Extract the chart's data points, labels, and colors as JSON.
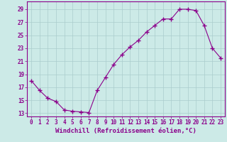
{
  "x": [
    0,
    1,
    2,
    3,
    4,
    5,
    6,
    7,
    8,
    9,
    10,
    11,
    12,
    13,
    14,
    15,
    16,
    17,
    18,
    19,
    20,
    21,
    22,
    23
  ],
  "y": [
    18.0,
    16.5,
    15.3,
    14.8,
    13.5,
    13.3,
    13.2,
    13.1,
    16.5,
    18.5,
    20.5,
    22.0,
    23.2,
    24.2,
    25.5,
    26.5,
    27.5,
    27.5,
    29.0,
    29.0,
    28.8,
    26.5,
    23.0,
    21.5
  ],
  "line_color": "#8b008b",
  "marker": "+",
  "marker_size": 4,
  "bg_color": "#cceae7",
  "grid_color": "#aacccc",
  "xlabel": "Windchill (Refroidissement éolien,°C)",
  "xlabel_fontsize": 6.5,
  "yticks": [
    13,
    15,
    17,
    19,
    21,
    23,
    25,
    27,
    29
  ],
  "xticks": [
    0,
    1,
    2,
    3,
    4,
    5,
    6,
    7,
    8,
    9,
    10,
    11,
    12,
    13,
    14,
    15,
    16,
    17,
    18,
    19,
    20,
    21,
    22,
    23
  ],
  "ylim": [
    12.5,
    30.2
  ],
  "xlim": [
    -0.5,
    23.5
  ],
  "tick_fontsize": 5.5,
  "tick_color": "#8b008b"
}
